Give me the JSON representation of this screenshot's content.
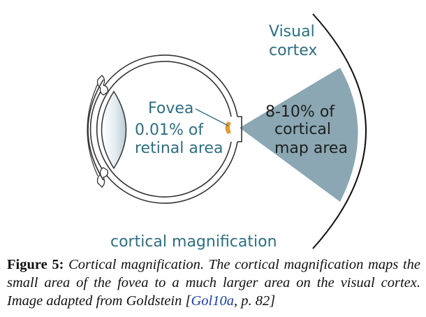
{
  "diagram": {
    "labels": {
      "visual_cortex_line1": "Visual",
      "visual_cortex_line2": "cortex",
      "fovea": "Fovea",
      "retina_line1": "0.01% of",
      "retina_line2": "retinal area",
      "cortex_line1": "8-10% of",
      "cortex_line2": "cortical",
      "cortex_line3": "map area",
      "bottom": "cortical magnification"
    },
    "colors": {
      "label_teal": "#2e6e80",
      "wedge": "#8aa7b3",
      "fovea": "#e39a3a",
      "eye_stroke": "#333333",
      "lens_fill": "#dfe9ee"
    }
  },
  "caption": {
    "figure_number": "Figure 5:",
    "text_before_cite": " Cortical magnification. The cortical magnification maps the small area of the fovea to a much larger area on the visual cortex.  Image adapted from Goldstein [",
    "cite_link": "Gol10a",
    "text_after_cite": ", p. 82]"
  }
}
